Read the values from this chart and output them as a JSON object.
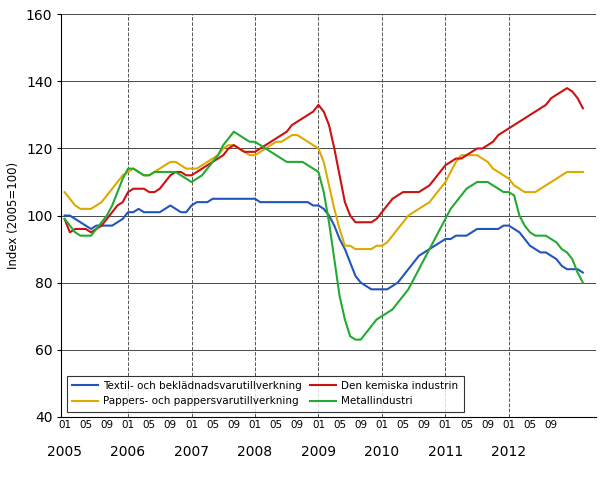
{
  "ylabel": "Index (2005=100)",
  "ylim": [
    40,
    160
  ],
  "yticks": [
    40,
    60,
    80,
    100,
    120,
    140,
    160
  ],
  "colors": {
    "blue": "#2255bb",
    "yellow": "#ddaa00",
    "red": "#cc1111",
    "green": "#22aa33"
  },
  "legend": [
    "Textil- och beklädnadsvarutillverkning",
    "Pappers- och pappersvarutillverkning",
    "Den kemiska industrin",
    "Metallindustri"
  ],
  "series": {
    "blue": [
      100,
      100,
      99,
      98,
      97,
      96,
      97,
      97,
      97,
      97,
      98,
      99,
      101,
      101,
      102,
      101,
      101,
      101,
      101,
      102,
      103,
      102,
      101,
      101,
      103,
      104,
      104,
      104,
      105,
      105,
      105,
      105,
      105,
      105,
      105,
      105,
      105,
      104,
      104,
      104,
      104,
      104,
      104,
      104,
      104,
      104,
      104,
      103,
      103,
      102,
      100,
      97,
      93,
      90,
      86,
      82,
      80,
      79,
      78,
      78,
      78,
      78,
      79,
      80,
      82,
      84,
      86,
      88,
      89,
      90,
      91,
      92,
      93,
      93,
      94,
      94,
      94,
      95,
      96,
      96,
      96,
      96,
      96,
      97,
      97,
      96,
      95,
      93,
      91,
      90,
      89,
      89,
      88,
      87,
      85,
      84,
      84,
      84,
      83
    ],
    "yellow": [
      107,
      105,
      103,
      102,
      102,
      102,
      103,
      104,
      106,
      108,
      110,
      112,
      113,
      114,
      113,
      112,
      112,
      113,
      114,
      115,
      116,
      116,
      115,
      114,
      114,
      114,
      115,
      116,
      117,
      118,
      120,
      121,
      121,
      120,
      119,
      118,
      118,
      119,
      120,
      121,
      122,
      122,
      123,
      124,
      124,
      123,
      122,
      121,
      120,
      116,
      109,
      102,
      96,
      91,
      91,
      90,
      90,
      90,
      90,
      91,
      91,
      92,
      94,
      96,
      98,
      100,
      101,
      102,
      103,
      104,
      106,
      108,
      110,
      113,
      116,
      118,
      118,
      118,
      118,
      117,
      116,
      114,
      113,
      112,
      111,
      109,
      108,
      107,
      107,
      107,
      108,
      109,
      110,
      111,
      112,
      113,
      113,
      113,
      113
    ],
    "red": [
      99,
      95,
      96,
      96,
      96,
      95,
      96,
      97,
      99,
      101,
      103,
      104,
      107,
      108,
      108,
      108,
      107,
      107,
      108,
      110,
      112,
      113,
      113,
      112,
      112,
      113,
      114,
      115,
      116,
      117,
      118,
      120,
      121,
      120,
      119,
      119,
      119,
      120,
      121,
      122,
      123,
      124,
      125,
      127,
      128,
      129,
      130,
      131,
      133,
      131,
      127,
      120,
      112,
      104,
      100,
      98,
      98,
      98,
      98,
      99,
      101,
      103,
      105,
      106,
      107,
      107,
      107,
      107,
      108,
      109,
      111,
      113,
      115,
      116,
      117,
      117,
      118,
      119,
      120,
      120,
      121,
      122,
      124,
      125,
      126,
      127,
      128,
      129,
      130,
      131,
      132,
      133,
      135,
      136,
      137,
      138,
      137,
      135,
      132
    ],
    "green": [
      99,
      97,
      95,
      94,
      94,
      94,
      96,
      98,
      100,
      103,
      107,
      111,
      114,
      114,
      113,
      112,
      112,
      113,
      113,
      113,
      113,
      113,
      112,
      111,
      110,
      111,
      112,
      114,
      116,
      118,
      121,
      123,
      125,
      124,
      123,
      122,
      122,
      121,
      120,
      119,
      118,
      117,
      116,
      116,
      116,
      116,
      115,
      114,
      113,
      107,
      98,
      87,
      76,
      69,
      64,
      63,
      63,
      65,
      67,
      69,
      70,
      71,
      72,
      74,
      76,
      78,
      81,
      84,
      87,
      90,
      93,
      96,
      99,
      102,
      104,
      106,
      108,
      109,
      110,
      110,
      110,
      109,
      108,
      107,
      107,
      106,
      100,
      97,
      95,
      94,
      94,
      94,
      93,
      92,
      90,
      89,
      87,
      83,
      80
    ]
  }
}
